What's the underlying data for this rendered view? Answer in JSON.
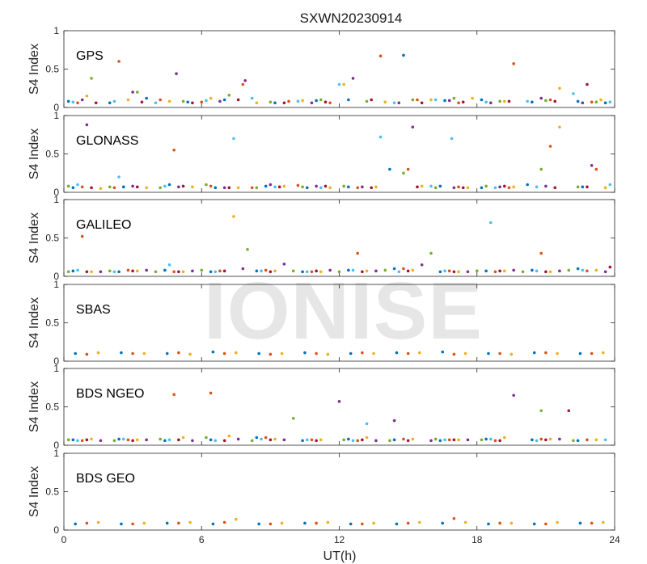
{
  "figure": {
    "title": "SXWN20230914",
    "xlabel": "UT(h)",
    "ylabel": "S4 Index",
    "watermark": "IONISE"
  },
  "colors": {
    "series": [
      "#0072BD",
      "#D95319",
      "#EDB120",
      "#7E2F8E",
      "#77AC30",
      "#4DBEEE",
      "#A2142F"
    ]
  },
  "chart_data": [
    {
      "type": "scatter",
      "title": "GPS",
      "xlim": [
        0,
        24
      ],
      "ylim": [
        0,
        1
      ],
      "xticks": [
        0,
        6,
        12,
        18,
        24
      ],
      "yticks": [
        0,
        0.5,
        1
      ],
      "series": [
        {
          "x": [
            0.2,
            2.0,
            3.6,
            5.4,
            7.0,
            9.2,
            11.0,
            12.4,
            14.8,
            16.6,
            18.2,
            20.4,
            22.4,
            23.6
          ],
          "y": [
            0.08,
            0.06,
            0.12,
            0.07,
            0.1,
            0.06,
            0.09,
            0.1,
            0.68,
            0.09,
            0.1,
            0.07,
            0.08,
            0.06
          ]
        },
        {
          "x": [
            0.6,
            2.4,
            4.2,
            6.0,
            7.8,
            9.8,
            11.6,
            13.8,
            15.4,
            17.2,
            19.6,
            21.2,
            23.0
          ],
          "y": [
            0.06,
            0.6,
            0.1,
            0.07,
            0.3,
            0.08,
            0.06,
            0.67,
            0.1,
            0.06,
            0.57,
            0.1,
            0.07
          ]
        },
        {
          "x": [
            1.0,
            2.8,
            4.6,
            6.4,
            8.4,
            10.4,
            12.2,
            14.0,
            16.0,
            17.8,
            19.2,
            21.6,
            23.4
          ],
          "y": [
            0.15,
            0.1,
            0.08,
            0.12,
            0.06,
            0.09,
            0.3,
            0.07,
            0.1,
            0.12,
            0.08,
            0.25,
            0.1
          ]
        },
        {
          "x": [
            0.8,
            3.0,
            4.9,
            6.8,
            7.9,
            10.8,
            12.6,
            14.6,
            16.8,
            18.6,
            20.8,
            22.6
          ],
          "y": [
            0.1,
            0.2,
            0.44,
            0.08,
            0.35,
            0.06,
            0.38,
            0.06,
            0.09,
            0.06,
            0.12,
            0.06
          ]
        },
        {
          "x": [
            1.2,
            3.2,
            5.2,
            7.2,
            9.0,
            11.2,
            13.2,
            15.2,
            17.0,
            19.0,
            21.0,
            23.2
          ],
          "y": [
            0.38,
            0.2,
            0.08,
            0.16,
            0.07,
            0.1,
            0.08,
            0.1,
            0.12,
            0.08,
            0.09,
            0.07
          ]
        },
        {
          "x": [
            0.4,
            2.2,
            4.0,
            6.2,
            8.2,
            10.2,
            12.0,
            14.4,
            16.2,
            18.4,
            20.2,
            22.2,
            23.8
          ],
          "y": [
            0.07,
            0.08,
            0.06,
            0.09,
            0.12,
            0.08,
            0.3,
            0.06,
            0.1,
            0.07,
            0.08,
            0.18,
            0.07
          ]
        },
        {
          "x": [
            1.4,
            3.4,
            5.6,
            7.6,
            9.6,
            11.4,
            13.4,
            15.6,
            17.4,
            19.4,
            21.4,
            22.8
          ],
          "y": [
            0.06,
            0.07,
            0.06,
            0.1,
            0.06,
            0.07,
            0.1,
            0.06,
            0.07,
            0.08,
            0.08,
            0.3
          ]
        }
      ]
    },
    {
      "type": "scatter",
      "title": "GLONASS",
      "xlim": [
        0,
        24
      ],
      "ylim": [
        0,
        1
      ],
      "xticks": [
        0,
        6,
        12,
        18,
        24
      ],
      "yticks": [
        0,
        0.5,
        1
      ],
      "series": [
        {
          "x": [
            0.4,
            2.6,
            4.6,
            6.6,
            8.8,
            10.6,
            12.4,
            14.2,
            16.4,
            18.2,
            20.2,
            22.6
          ],
          "y": [
            0.06,
            0.07,
            0.1,
            0.06,
            0.08,
            0.06,
            0.07,
            0.3,
            0.08,
            0.06,
            0.1,
            0.07
          ]
        },
        {
          "x": [
            0.8,
            2.2,
            4.8,
            6.4,
            8.2,
            10.2,
            12.8,
            15.0,
            17.2,
            19.4,
            21.2,
            23.2
          ],
          "y": [
            0.07,
            0.06,
            0.55,
            0.08,
            0.06,
            0.09,
            0.06,
            0.3,
            0.07,
            0.06,
            0.6,
            0.3
          ]
        },
        {
          "x": [
            1.6,
            3.6,
            5.6,
            7.6,
            9.6,
            11.6,
            13.6,
            15.6,
            17.6,
            19.6,
            21.6,
            23.6
          ],
          "y": [
            0.05,
            0.06,
            0.07,
            0.06,
            0.08,
            0.06,
            0.07,
            0.08,
            0.06,
            0.07,
            0.85,
            0.06
          ]
        },
        {
          "x": [
            1.0,
            3.0,
            5.0,
            7.0,
            9.0,
            11.0,
            13.0,
            15.2,
            17.0,
            19.0,
            21.0,
            23.0
          ],
          "y": [
            0.88,
            0.08,
            0.07,
            0.06,
            0.1,
            0.08,
            0.07,
            0.85,
            0.06,
            0.07,
            0.08,
            0.35
          ]
        },
        {
          "x": [
            0.2,
            2.0,
            4.2,
            6.2,
            8.4,
            10.4,
            12.2,
            14.8,
            16.2,
            18.4,
            20.8,
            22.4
          ],
          "y": [
            0.08,
            0.07,
            0.06,
            0.1,
            0.06,
            0.07,
            0.08,
            0.25,
            0.06,
            0.08,
            0.3,
            0.07
          ]
        },
        {
          "x": [
            0.6,
            2.4,
            4.4,
            7.4,
            9.2,
            11.2,
            13.8,
            16.0,
            16.9,
            18.8,
            20.6,
            23.8
          ],
          "y": [
            0.1,
            0.2,
            0.08,
            0.7,
            0.07,
            0.06,
            0.72,
            0.08,
            0.7,
            0.06,
            0.07,
            0.1
          ]
        },
        {
          "x": [
            1.2,
            3.2,
            5.2,
            7.2,
            9.4,
            11.4,
            13.4,
            15.4,
            17.4,
            19.2,
            21.4,
            22.8
          ],
          "y": [
            0.06,
            0.07,
            0.08,
            0.06,
            0.07,
            0.08,
            0.06,
            0.07,
            0.06,
            0.08,
            0.06,
            0.07
          ]
        }
      ]
    },
    {
      "type": "scatter",
      "title": "GALILEO",
      "xlim": [
        0,
        24
      ],
      "ylim": [
        0,
        1
      ],
      "xticks": [
        0,
        6,
        12,
        18,
        24
      ],
      "yticks": [
        0,
        0.5,
        1
      ],
      "series": [
        {
          "x": [
            0.4,
            2.4,
            4.4,
            6.4,
            8.4,
            10.4,
            12.4,
            14.4,
            16.4,
            18.4,
            20.4,
            22.4
          ],
          "y": [
            0.07,
            0.06,
            0.08,
            0.06,
            0.07,
            0.06,
            0.08,
            0.1,
            0.06,
            0.07,
            0.08,
            0.1
          ]
        },
        {
          "x": [
            0.8,
            2.8,
            4.8,
            6.8,
            8.8,
            10.8,
            12.8,
            14.8,
            16.8,
            18.8,
            20.8,
            22.8
          ],
          "y": [
            0.52,
            0.08,
            0.06,
            0.07,
            0.08,
            0.06,
            0.3,
            0.1,
            0.07,
            0.06,
            0.3,
            0.07
          ]
        },
        {
          "x": [
            1.2,
            3.2,
            5.2,
            7.4,
            9.2,
            11.2,
            13.2,
            15.2,
            17.2,
            19.2,
            21.2,
            23.2
          ],
          "y": [
            0.06,
            0.07,
            0.06,
            0.78,
            0.07,
            0.06,
            0.07,
            0.08,
            0.06,
            0.07,
            0.06,
            0.08
          ]
        },
        {
          "x": [
            1.6,
            3.6,
            5.6,
            7.8,
            9.6,
            11.6,
            13.6,
            15.6,
            17.6,
            19.6,
            21.6,
            23.6
          ],
          "y": [
            0.06,
            0.08,
            0.07,
            0.1,
            0.16,
            0.08,
            0.07,
            0.15,
            0.06,
            0.08,
            0.07,
            0.06
          ]
        },
        {
          "x": [
            0.2,
            2.0,
            4.0,
            6.0,
            8.0,
            10.0,
            12.0,
            14.0,
            16.0,
            18.0,
            20.0,
            22.0
          ],
          "y": [
            0.06,
            0.07,
            0.06,
            0.08,
            0.35,
            0.07,
            0.06,
            0.08,
            0.3,
            0.07,
            0.06,
            0.08
          ]
        },
        {
          "x": [
            0.6,
            2.2,
            4.6,
            6.6,
            8.6,
            10.6,
            12.6,
            14.6,
            16.6,
            18.6,
            20.6,
            22.6
          ],
          "y": [
            0.08,
            0.06,
            0.15,
            0.06,
            0.07,
            0.06,
            0.08,
            0.06,
            0.07,
            0.7,
            0.07,
            0.08
          ]
        },
        {
          "x": [
            1.0,
            3.0,
            5.0,
            7.0,
            9.0,
            11.0,
            13.0,
            15.0,
            17.0,
            19.0,
            21.0,
            23.8
          ],
          "y": [
            0.06,
            0.07,
            0.06,
            0.07,
            0.06,
            0.07,
            0.06,
            0.07,
            0.06,
            0.07,
            0.06,
            0.12
          ]
        }
      ]
    },
    {
      "type": "scatter",
      "title": "SBAS",
      "xlim": [
        0,
        24
      ],
      "ylim": [
        0,
        1
      ],
      "xticks": [
        0,
        6,
        12,
        18,
        24
      ],
      "yticks": [
        0,
        0.5,
        1
      ],
      "series": [
        {
          "x": [
            0.5,
            2.5,
            4.5,
            6.5,
            8.5,
            10.5,
            12.5,
            14.5,
            16.5,
            18.5,
            20.5,
            22.5
          ],
          "y": [
            0.1,
            0.11,
            0.1,
            0.12,
            0.1,
            0.11,
            0.1,
            0.11,
            0.12,
            0.1,
            0.11,
            0.1
          ]
        },
        {
          "x": [
            1.0,
            3.0,
            5.0,
            7.0,
            9.0,
            11.0,
            13.0,
            15.0,
            17.0,
            19.0,
            21.0,
            23.0
          ],
          "y": [
            0.09,
            0.1,
            0.11,
            0.1,
            0.09,
            0.1,
            0.11,
            0.1,
            0.09,
            0.1,
            0.11,
            0.1
          ]
        },
        {
          "x": [
            1.5,
            3.5,
            5.5,
            7.5,
            9.5,
            11.5,
            13.5,
            15.5,
            17.5,
            19.5,
            21.5,
            23.5
          ],
          "y": [
            0.11,
            0.1,
            0.09,
            0.11,
            0.1,
            0.09,
            0.1,
            0.11,
            0.1,
            0.09,
            0.1,
            0.11
          ]
        }
      ]
    },
    {
      "type": "scatter",
      "title": "BDS NGEO",
      "xlim": [
        0,
        24
      ],
      "ylim": [
        0,
        1
      ],
      "xticks": [
        0,
        6,
        12,
        18,
        24
      ],
      "yticks": [
        0,
        0.5,
        1
      ],
      "series": [
        {
          "x": [
            0.4,
            2.4,
            4.4,
            6.4,
            8.4,
            10.4,
            12.4,
            14.4,
            16.4,
            18.4,
            20.4,
            22.4
          ],
          "y": [
            0.07,
            0.08,
            0.06,
            0.07,
            0.1,
            0.06,
            0.08,
            0.07,
            0.06,
            0.08,
            0.07,
            0.06
          ]
        },
        {
          "x": [
            0.8,
            2.8,
            4.8,
            6.4,
            8.8,
            10.8,
            12.8,
            14.8,
            16.8,
            18.8,
            20.8,
            22.8
          ],
          "y": [
            0.06,
            0.07,
            0.66,
            0.68,
            0.1,
            0.07,
            0.06,
            0.08,
            0.07,
            0.06,
            0.08,
            0.07
          ]
        },
        {
          "x": [
            1.2,
            3.2,
            5.2,
            7.2,
            9.2,
            11.2,
            13.2,
            15.2,
            17.2,
            19.2,
            21.2,
            23.2
          ],
          "y": [
            0.08,
            0.07,
            0.1,
            0.12,
            0.08,
            0.07,
            0.1,
            0.08,
            0.07,
            0.1,
            0.08,
            0.07
          ]
        },
        {
          "x": [
            1.6,
            3.6,
            5.6,
            7.6,
            9.6,
            12.0,
            13.6,
            14.4,
            16.0,
            17.6,
            19.6,
            21.6
          ],
          "y": [
            0.06,
            0.07,
            0.06,
            0.08,
            0.07,
            0.57,
            0.06,
            0.32,
            0.06,
            0.07,
            0.65,
            0.08
          ]
        },
        {
          "x": [
            0.2,
            2.2,
            4.2,
            6.2,
            8.2,
            10.0,
            12.2,
            14.2,
            16.2,
            18.2,
            20.8,
            22.2
          ],
          "y": [
            0.07,
            0.06,
            0.08,
            0.1,
            0.06,
            0.35,
            0.07,
            0.06,
            0.08,
            0.07,
            0.45,
            0.06
          ]
        },
        {
          "x": [
            0.6,
            2.6,
            4.6,
            6.6,
            8.6,
            10.6,
            12.6,
            13.2,
            16.6,
            18.6,
            20.6,
            23.6
          ],
          "y": [
            0.06,
            0.08,
            0.07,
            0.06,
            0.08,
            0.07,
            0.06,
            0.28,
            0.07,
            0.08,
            0.06,
            0.07
          ]
        },
        {
          "x": [
            1.0,
            3.0,
            5.0,
            7.0,
            9.0,
            11.0,
            13.0,
            15.0,
            17.0,
            19.0,
            21.0,
            22.0
          ],
          "y": [
            0.07,
            0.06,
            0.07,
            0.06,
            0.07,
            0.06,
            0.07,
            0.06,
            0.07,
            0.06,
            0.07,
            0.45
          ]
        }
      ]
    },
    {
      "type": "scatter",
      "title": "BDS GEO",
      "xlim": [
        0,
        24
      ],
      "ylim": [
        0,
        1
      ],
      "xticks": [
        0,
        6,
        12,
        18,
        24
      ],
      "yticks": [
        0,
        0.5,
        1
      ],
      "series": [
        {
          "x": [
            0.5,
            2.5,
            4.5,
            6.5,
            8.5,
            10.5,
            12.5,
            14.5,
            16.5,
            18.5,
            20.5,
            22.5
          ],
          "y": [
            0.08,
            0.08,
            0.09,
            0.08,
            0.08,
            0.09,
            0.08,
            0.08,
            0.09,
            0.08,
            0.08,
            0.09
          ]
        },
        {
          "x": [
            1.0,
            3.0,
            5.0,
            7.0,
            9.0,
            11.0,
            13.0,
            15.0,
            17.0,
            19.0,
            21.0,
            23.0
          ],
          "y": [
            0.09,
            0.08,
            0.09,
            0.1,
            0.08,
            0.09,
            0.08,
            0.09,
            0.15,
            0.09,
            0.08,
            0.09
          ]
        },
        {
          "x": [
            1.5,
            3.5,
            5.5,
            7.5,
            9.5,
            11.5,
            13.5,
            15.5,
            17.5,
            19.5,
            21.5,
            23.5
          ],
          "y": [
            0.1,
            0.09,
            0.1,
            0.14,
            0.09,
            0.1,
            0.09,
            0.1,
            0.1,
            0.09,
            0.1,
            0.1
          ]
        }
      ]
    }
  ]
}
